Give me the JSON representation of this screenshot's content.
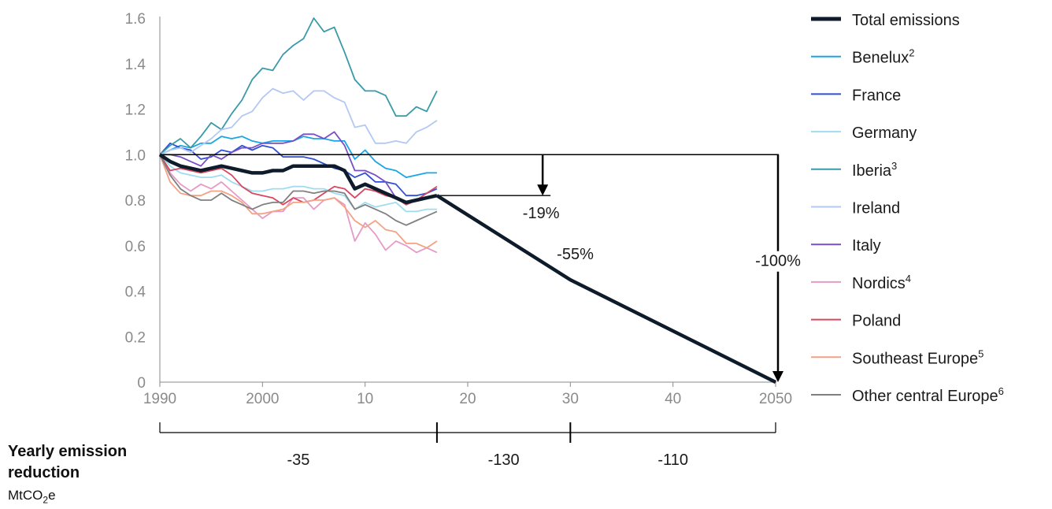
{
  "chart_data": {
    "type": "line",
    "xlim": [
      1990,
      2050
    ],
    "ylim": [
      0,
      1.6
    ],
    "y_ticks": [
      "0",
      "0.2",
      "0.4",
      "0.6",
      "0.8",
      "1.0",
      "1.2",
      "1.4",
      "1.6"
    ],
    "x_ticks": [
      {
        "value": 1990,
        "label": "1990"
      },
      {
        "value": 2000,
        "label": "2000"
      },
      {
        "value": 2010,
        "label": "10"
      },
      {
        "value": 2020,
        "label": "20"
      },
      {
        "value": 2030,
        "label": "30"
      },
      {
        "value": 2040,
        "label": "40"
      },
      {
        "value": 2050,
        "label": "2050"
      }
    ],
    "grid": false,
    "legend_position": "right",
    "total": {
      "name": "Total emissions",
      "color": "#0d1b2a",
      "x": [
        1990,
        1991,
        1992,
        1993,
        1994,
        1995,
        1996,
        1997,
        1998,
        1999,
        2000,
        2001,
        2002,
        2003,
        2004,
        2005,
        2006,
        2007,
        2008,
        2009,
        2010,
        2011,
        2012,
        2013,
        2014,
        2015,
        2016,
        2017
      ],
      "values": [
        1.0,
        0.97,
        0.95,
        0.94,
        0.93,
        0.94,
        0.95,
        0.94,
        0.93,
        0.92,
        0.92,
        0.93,
        0.93,
        0.95,
        0.95,
        0.95,
        0.95,
        0.95,
        0.93,
        0.85,
        0.87,
        0.85,
        0.83,
        0.81,
        0.79,
        0.8,
        0.81,
        0.82
      ]
    },
    "projection": {
      "x": [
        2017,
        2030,
        2050
      ],
      "values": [
        0.82,
        0.45,
        0.0
      ]
    },
    "series": [
      {
        "name": "Benelux",
        "sup": "2",
        "color": "#1aa6e6",
        "values": [
          1.0,
          1.02,
          1.04,
          1.03,
          1.05,
          1.05,
          1.08,
          1.07,
          1.08,
          1.06,
          1.05,
          1.06,
          1.06,
          1.06,
          1.08,
          1.07,
          1.07,
          1.06,
          1.06,
          0.98,
          1.02,
          0.97,
          0.94,
          0.93,
          0.9,
          0.91,
          0.92,
          0.92
        ]
      },
      {
        "name": "France",
        "sup": "",
        "color": "#2f4fd6",
        "values": [
          1.0,
          1.05,
          1.03,
          1.02,
          0.98,
          0.99,
          1.02,
          1.01,
          1.04,
          1.02,
          1.04,
          1.03,
          0.99,
          0.99,
          0.99,
          0.98,
          0.96,
          0.94,
          0.93,
          0.9,
          0.92,
          0.88,
          0.88,
          0.87,
          0.82,
          0.82,
          0.83,
          0.85
        ]
      },
      {
        "name": "Germany",
        "sup": "",
        "color": "#9fdcf0",
        "values": [
          1.0,
          0.95,
          0.92,
          0.91,
          0.9,
          0.9,
          0.91,
          0.88,
          0.86,
          0.84,
          0.84,
          0.85,
          0.85,
          0.86,
          0.86,
          0.85,
          0.85,
          0.83,
          0.82,
          0.76,
          0.79,
          0.77,
          0.78,
          0.79,
          0.75,
          0.75,
          0.76,
          0.76
        ]
      },
      {
        "name": "Iberia",
        "sup": "3",
        "color": "#3a9aa8",
        "values": [
          1.0,
          1.04,
          1.07,
          1.03,
          1.08,
          1.14,
          1.11,
          1.18,
          1.24,
          1.33,
          1.38,
          1.37,
          1.44,
          1.48,
          1.51,
          1.6,
          1.54,
          1.56,
          1.45,
          1.33,
          1.28,
          1.28,
          1.26,
          1.17,
          1.17,
          1.21,
          1.19,
          1.28
        ]
      },
      {
        "name": "Ireland",
        "sup": "",
        "color": "#b3c8f2",
        "values": [
          1.0,
          1.02,
          1.03,
          1.01,
          1.04,
          1.07,
          1.11,
          1.12,
          1.17,
          1.19,
          1.25,
          1.29,
          1.27,
          1.28,
          1.24,
          1.28,
          1.28,
          1.25,
          1.23,
          1.12,
          1.13,
          1.05,
          1.05,
          1.06,
          1.05,
          1.1,
          1.12,
          1.15
        ]
      },
      {
        "name": "Italy",
        "sup": "",
        "color": "#7a4fc6",
        "values": [
          1.0,
          1.0,
          0.99,
          0.97,
          0.95,
          1.0,
          0.98,
          1.01,
          1.03,
          1.03,
          1.05,
          1.05,
          1.05,
          1.06,
          1.09,
          1.09,
          1.07,
          1.1,
          1.04,
          0.93,
          0.93,
          0.91,
          0.88,
          0.81,
          0.78,
          0.8,
          0.81,
          0.82
        ]
      },
      {
        "name": "Nordics",
        "sup": "4",
        "color": "#e69ac6",
        "values": [
          1.0,
          0.92,
          0.87,
          0.84,
          0.87,
          0.85,
          0.88,
          0.84,
          0.8,
          0.76,
          0.72,
          0.75,
          0.75,
          0.81,
          0.81,
          0.76,
          0.8,
          0.81,
          0.78,
          0.62,
          0.7,
          0.65,
          0.58,
          0.62,
          0.6,
          0.57,
          0.59,
          0.57
        ]
      },
      {
        "name": "Poland",
        "sup": "",
        "color": "#d9475f",
        "values": [
          1.0,
          0.93,
          0.94,
          0.93,
          0.92,
          0.93,
          0.94,
          0.91,
          0.86,
          0.83,
          0.82,
          0.81,
          0.78,
          0.81,
          0.79,
          0.8,
          0.83,
          0.86,
          0.85,
          0.81,
          0.85,
          0.84,
          0.82,
          0.81,
          0.78,
          0.8,
          0.83,
          0.86
        ]
      },
      {
        "name": "Southeast Europe",
        "sup": "5",
        "color": "#f4a184",
        "values": [
          1.0,
          0.88,
          0.83,
          0.82,
          0.82,
          0.84,
          0.84,
          0.82,
          0.79,
          0.74,
          0.74,
          0.75,
          0.76,
          0.79,
          0.79,
          0.8,
          0.8,
          0.81,
          0.77,
          0.71,
          0.68,
          0.71,
          0.67,
          0.66,
          0.61,
          0.61,
          0.59,
          0.62
        ]
      },
      {
        "name": "Other central Europe",
        "sup": "6",
        "color": "#808080",
        "values": [
          1.0,
          0.91,
          0.85,
          0.82,
          0.8,
          0.8,
          0.83,
          0.8,
          0.78,
          0.76,
          0.78,
          0.79,
          0.79,
          0.84,
          0.84,
          0.83,
          0.84,
          0.84,
          0.83,
          0.76,
          0.78,
          0.76,
          0.74,
          0.71,
          0.69,
          0.71,
          0.73,
          0.75
        ]
      }
    ],
    "annotations": [
      {
        "id": "minus19",
        "label": "-19%"
      },
      {
        "id": "minus55",
        "label": "-55%"
      },
      {
        "id": "minus100",
        "label": "-100%"
      }
    ],
    "reduction_segments": [
      {
        "label": "-35"
      },
      {
        "label": "-130"
      },
      {
        "label": "-110"
      }
    ]
  },
  "reduction": {
    "title": "Yearly emission reduction",
    "unit_main": "MtCO",
    "unit_sub": "2",
    "unit_tail": "e"
  }
}
